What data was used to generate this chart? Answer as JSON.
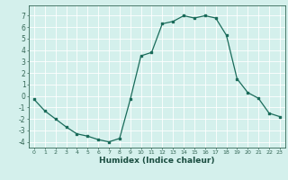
{
  "x": [
    0,
    1,
    2,
    3,
    4,
    5,
    6,
    7,
    8,
    9,
    10,
    11,
    12,
    13,
    14,
    15,
    16,
    17,
    18,
    19,
    20,
    21,
    22,
    23
  ],
  "y": [
    -0.3,
    -1.3,
    -2.0,
    -2.7,
    -3.3,
    -3.5,
    -3.8,
    -4.0,
    -3.7,
    -0.3,
    3.5,
    3.8,
    6.3,
    6.5,
    7.0,
    6.8,
    7.0,
    6.8,
    5.3,
    1.5,
    0.3,
    -0.2,
    -1.5,
    -1.8
  ],
  "line_color": "#1a6b5a",
  "bg_color": "#d4f0ec",
  "grid_color": "#ffffff",
  "xlabel": "Humidex (Indice chaleur)",
  "xlim": [
    -0.5,
    23.5
  ],
  "ylim": [
    -4.5,
    7.9
  ],
  "yticks": [
    -4,
    -3,
    -2,
    -1,
    0,
    1,
    2,
    3,
    4,
    5,
    6,
    7
  ],
  "xticks": [
    0,
    1,
    2,
    3,
    4,
    5,
    6,
    7,
    8,
    9,
    10,
    11,
    12,
    13,
    14,
    15,
    16,
    17,
    18,
    19,
    20,
    21,
    22,
    23
  ]
}
